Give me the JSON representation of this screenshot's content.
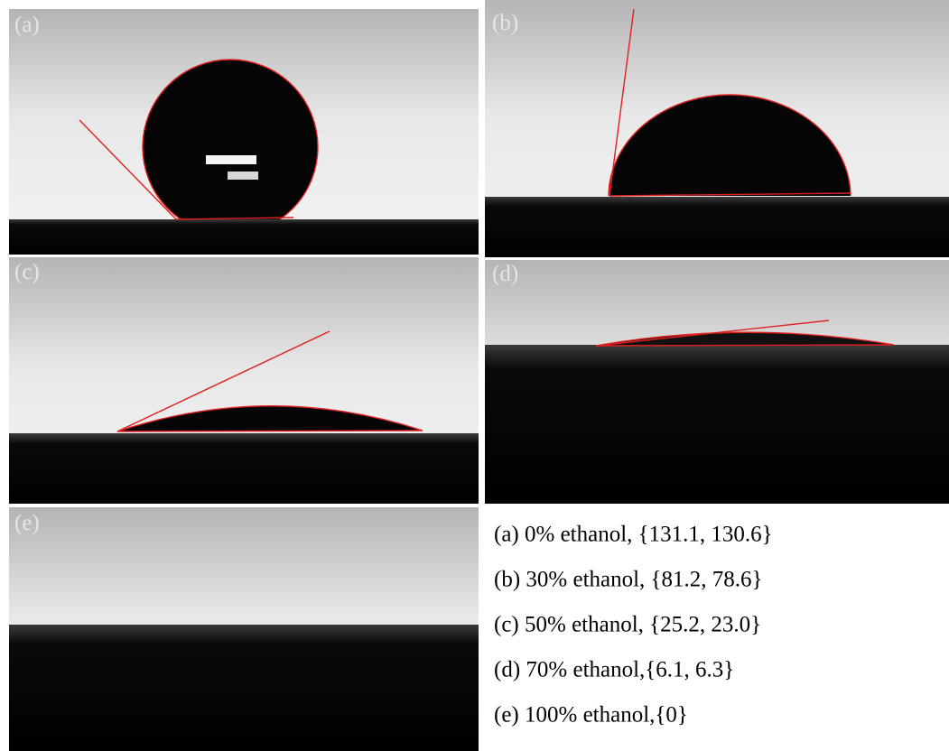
{
  "panels": [
    {
      "label": "(a)"
    },
    {
      "label": "(b)"
    },
    {
      "label": "(c)"
    },
    {
      "label": "(d)"
    },
    {
      "label": "(e)"
    }
  ],
  "legend": [
    "(a) 0% ethanol, {131.1, 130.6}",
    "(b) 30% ethanol, {81.2, 78.6}",
    "(c) 50% ethanol, {25.2, 23.0}",
    "(d) 70% ethanol,{6.1, 6.3}",
    "(e) 100% ethanol,{0}"
  ]
}
